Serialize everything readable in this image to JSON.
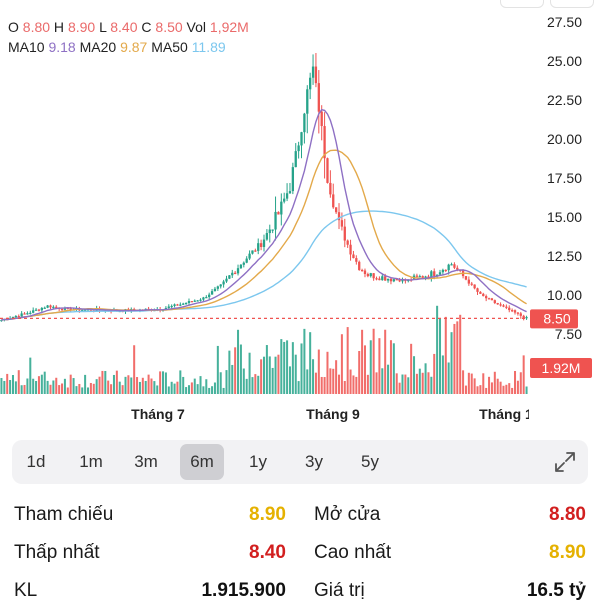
{
  "header": {
    "o_label": "O",
    "o_value": "8.80",
    "h_label": "H",
    "h_value": "8.90",
    "l_label": "L",
    "l_value": "8.40",
    "c_label": "C",
    "c_value": "8.50",
    "vol_label": "Vol",
    "vol_value": "1,92M",
    "ma10_label": "MA10",
    "ma10_value": "9.18",
    "ma20_label": "MA20",
    "ma20_value": "9.87",
    "ma50_label": "MA50",
    "ma50_value": "11.89"
  },
  "colors": {
    "up": "#26a38a",
    "down": "#ef5350",
    "ma10": "#8e70c4",
    "ma20": "#e3a94a",
    "ma50": "#7cc7ee",
    "price_badge": "#ef5350",
    "yellow": "#e5b100",
    "red_value": "#d21f1f"
  },
  "chart_data": {
    "type": "candlestick",
    "y_ticks": [
      "27.50",
      "25.00",
      "22.50",
      "20.00",
      "17.50",
      "15.00",
      "12.50",
      "10.00",
      "7.50"
    ],
    "ylim": [
      7.5,
      27.5
    ],
    "x_labels": [
      "Tháng 7",
      "Tháng 9",
      "Tháng 1"
    ],
    "current_price": 8.5,
    "current_price_label": "8.50",
    "current_volume_label": "1.92M",
    "ma10_last": 9.18,
    "ma20_last": 9.87,
    "ma50_last": 11.89
  },
  "ranges": {
    "items": [
      "1d",
      "1m",
      "3m",
      "6m",
      "1y",
      "3y",
      "5y"
    ],
    "active": "6m",
    "expand_icon": "expand-icon"
  },
  "stats": {
    "reference_label": "Tham chiếu",
    "reference_value": "8.90",
    "open_label": "Mở cửa",
    "open_value": "8.80",
    "low_label": "Thấp nhất",
    "low_value": "8.40",
    "high_label": "Cao nhất",
    "high_value": "8.90",
    "volume_label": "KL",
    "volume_value": "1.915.900",
    "value_label": "Giá trị",
    "value_value": "16.5 tỷ"
  }
}
